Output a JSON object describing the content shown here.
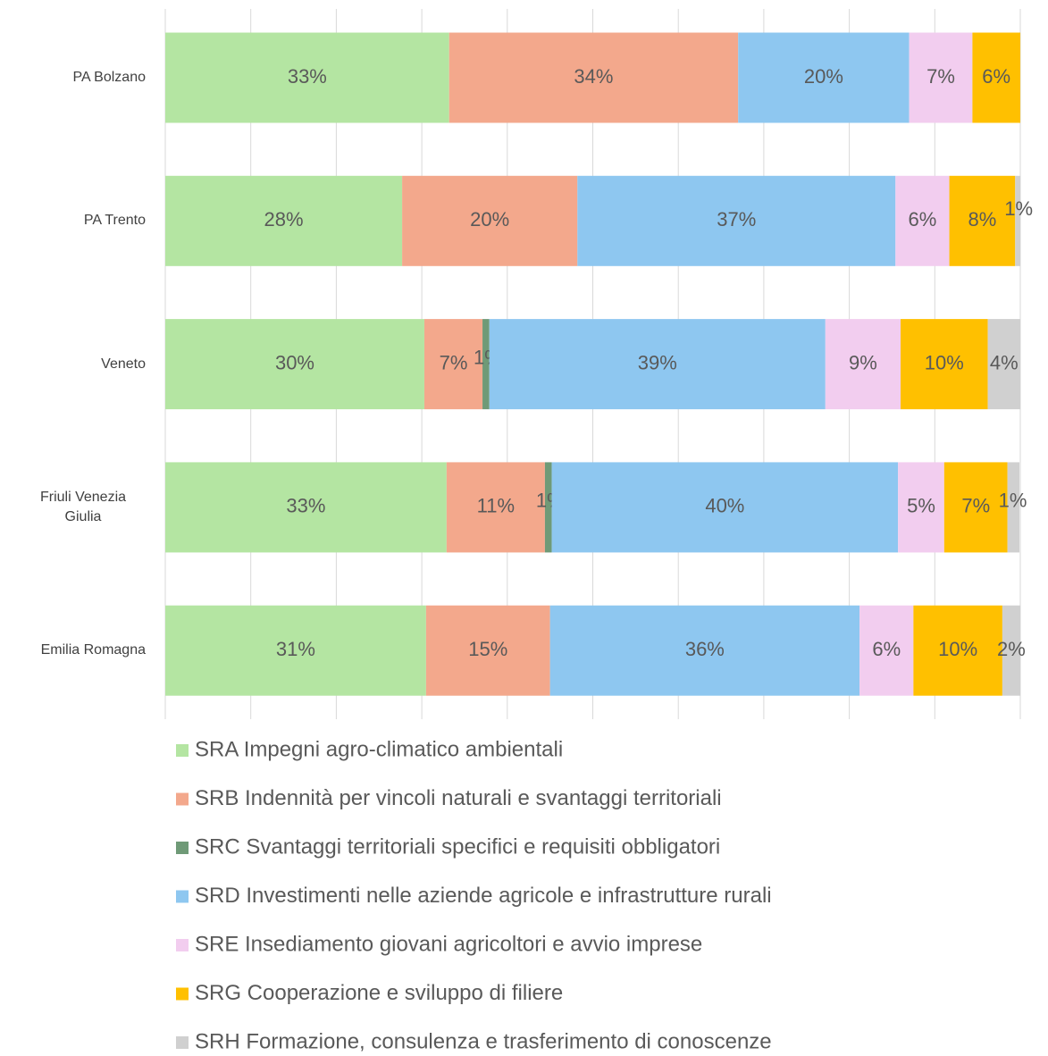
{
  "chart_data": {
    "type": "stacked-bar-horizontal",
    "categories": [
      "PA Bolzano",
      "PA Trento",
      "Veneto",
      "Friuli Venezia Giulia",
      "Emilia Romagna"
    ],
    "series": [
      {
        "name": "SRA Impegni agro-climatico ambientali",
        "color": "#b4e5a2",
        "values": [
          33.2,
          27.7,
          30.3,
          32.9,
          30.5
        ],
        "value_labels": [
          "33%",
          "28%",
          "30%",
          "33%",
          "31%"
        ]
      },
      {
        "name": "SRB Indennità per vincoli naturali e svantaggi territoriali",
        "color": "#f3a88c",
        "values": [
          33.8,
          20.5,
          6.8,
          11.5,
          14.5
        ],
        "value_labels": [
          "34%",
          "20%",
          "7%",
          "11%",
          "15%"
        ]
      },
      {
        "name": "SRC Svantaggi territoriali specifici e requisiti obbligatori",
        "color": "#6f9a77",
        "values": [
          null,
          null,
          0.8,
          0.8,
          null
        ],
        "value_labels": [
          null,
          null,
          "1%",
          "1%",
          null
        ]
      },
      {
        "name": "SRD Investimenti nelle aziende agricole e infrastrutture rurali",
        "color": "#8ec7f0",
        "values": [
          20.0,
          37.2,
          39.3,
          40.5,
          36.2
        ],
        "value_labels": [
          "20%",
          "37%",
          "39%",
          "40%",
          "36%"
        ]
      },
      {
        "name": "SRE Insediamento giovani agricoltori e avvio imprese",
        "color": "#f2cdef",
        "values": [
          7.4,
          6.3,
          8.8,
          5.4,
          6.3
        ],
        "value_labels": [
          "7%",
          "6%",
          "9%",
          "5%",
          "6%"
        ]
      },
      {
        "name": "SRG Cooperazione e sviluppo di filiere",
        "color": "#ffc000",
        "values": [
          5.6,
          7.7,
          10.2,
          7.4,
          10.4
        ],
        "value_labels": [
          "6%",
          "8%",
          "10%",
          "7%",
          "10%"
        ]
      },
      {
        "name": "SRH Formazione, consulenza e trasferimento di conoscenze",
        "color": "#d0d0d0",
        "values": [
          null,
          0.6,
          3.8,
          1.4,
          2.1
        ],
        "value_labels": [
          null,
          "1%",
          "4%",
          "1%",
          "2%"
        ]
      }
    ],
    "xlim": [
      0,
      100
    ],
    "xticks": [
      0,
      10,
      20,
      30,
      40,
      50,
      60,
      70,
      80,
      90,
      100
    ],
    "grid": true
  }
}
